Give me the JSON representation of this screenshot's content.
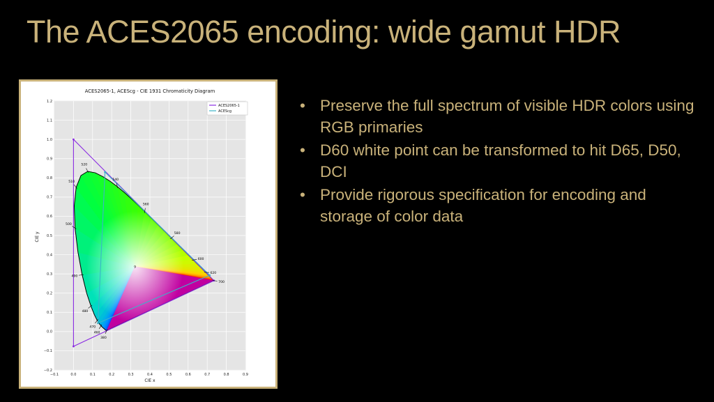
{
  "slide": {
    "title": "The ACES2065 encoding: wide gamut HDR",
    "bullet_glyph": "•",
    "bullets": [
      "Preserve the full spectrum of visible HDR colors using RGB primaries",
      "D60 white point can be transformed to hit D65, D50, DCI",
      "Provide rigorous specification for encoding and storage of color data"
    ],
    "colors": {
      "background": "#000000",
      "accent": "#c9b27a"
    }
  },
  "chart_data": {
    "type": "scatter",
    "title": "ACES2065-1, ACEScg - CIE 1931 Chromaticity Diagram",
    "xlabel": "CIE x",
    "ylabel": "CIE y",
    "xlim": [
      -0.1,
      0.9
    ],
    "ylim": [
      -0.2,
      1.2
    ],
    "x_ticks": [
      "−0.1",
      "0.0",
      "0.1",
      "0.2",
      "0.3",
      "0.4",
      "0.5",
      "0.6",
      "0.7",
      "0.8",
      "0.9"
    ],
    "y_ticks": [
      "−0.2",
      "−0.1",
      "0.0",
      "0.1",
      "0.2",
      "0.3",
      "0.4",
      "0.5",
      "0.6",
      "0.7",
      "0.8",
      "0.9",
      "1.0",
      "1.1",
      "1.2"
    ],
    "grid": true,
    "legend_position": "top-right",
    "series": [
      {
        "name": "ACES2065-1",
        "color": "#8a2be2",
        "points": [
          [
            0.7347,
            0.2653
          ],
          [
            0.0,
            1.0
          ],
          [
            0.0001,
            -0.077
          ],
          [
            0.7347,
            0.2653
          ]
        ]
      },
      {
        "name": "ACEScg",
        "color": "#3cb4c8",
        "points": [
          [
            0.713,
            0.293
          ],
          [
            0.165,
            0.83
          ],
          [
            0.128,
            0.044
          ],
          [
            0.713,
            0.293
          ]
        ]
      }
    ],
    "spectral_locus": [
      [
        0.1741,
        0.005
      ],
      [
        0.1738,
        0.0049
      ],
      [
        0.1736,
        0.0049
      ],
      [
        0.1733,
        0.0048
      ],
      [
        0.173,
        0.0048
      ],
      [
        0.1726,
        0.0048
      ],
      [
        0.1721,
        0.0048
      ],
      [
        0.1714,
        0.0051
      ],
      [
        0.1703,
        0.0058
      ],
      [
        0.1689,
        0.0069
      ],
      [
        0.1669,
        0.0086
      ],
      [
        0.1644,
        0.0109
      ],
      [
        0.1611,
        0.0138
      ],
      [
        0.1566,
        0.0177
      ],
      [
        0.151,
        0.0227
      ],
      [
        0.144,
        0.0297
      ],
      [
        0.1355,
        0.0399
      ],
      [
        0.1241,
        0.0578
      ],
      [
        0.1096,
        0.0868
      ],
      [
        0.0913,
        0.1327
      ],
      [
        0.0687,
        0.2007
      ],
      [
        0.0454,
        0.295
      ],
      [
        0.0235,
        0.4127
      ],
      [
        0.0082,
        0.5384
      ],
      [
        0.0039,
        0.6548
      ],
      [
        0.0139,
        0.7502
      ],
      [
        0.0389,
        0.812
      ],
      [
        0.0743,
        0.8338
      ],
      [
        0.1142,
        0.8262
      ],
      [
        0.1547,
        0.8059
      ],
      [
        0.1929,
        0.7816
      ],
      [
        0.2296,
        0.7543
      ],
      [
        0.2658,
        0.7243
      ],
      [
        0.3016,
        0.6923
      ],
      [
        0.3373,
        0.6589
      ],
      [
        0.3731,
        0.6245
      ],
      [
        0.4087,
        0.5896
      ],
      [
        0.4441,
        0.5547
      ],
      [
        0.4788,
        0.5202
      ],
      [
        0.5125,
        0.4866
      ],
      [
        0.5448,
        0.4544
      ],
      [
        0.5752,
        0.4242
      ],
      [
        0.6029,
        0.3965
      ],
      [
        0.627,
        0.3725
      ],
      [
        0.6482,
        0.3514
      ],
      [
        0.6658,
        0.334
      ],
      [
        0.6801,
        0.3197
      ],
      [
        0.6915,
        0.3083
      ],
      [
        0.7006,
        0.2993
      ],
      [
        0.7079,
        0.292
      ],
      [
        0.714,
        0.2859
      ],
      [
        0.719,
        0.2809
      ],
      [
        0.723,
        0.277
      ],
      [
        0.726,
        0.274
      ],
      [
        0.7283,
        0.2717
      ],
      [
        0.73,
        0.27
      ],
      [
        0.7311,
        0.2689
      ],
      [
        0.732,
        0.268
      ],
      [
        0.7327,
        0.2673
      ],
      [
        0.7334,
        0.2666
      ],
      [
        0.734,
        0.266
      ],
      [
        0.7344,
        0.2656
      ],
      [
        0.7346,
        0.2654
      ],
      [
        0.7347,
        0.2653
      ]
    ],
    "wavelength_labels": [
      {
        "text": "380",
        "x": 0.1741,
        "y": 0.005
      },
      {
        "text": "460",
        "x": 0.144,
        "y": 0.0297
      },
      {
        "text": "470",
        "x": 0.1241,
        "y": 0.0578
      },
      {
        "text": "480",
        "x": 0.0913,
        "y": 0.1327
      },
      {
        "text": "490",
        "x": 0.0454,
        "y": 0.295
      },
      {
        "text": "500",
        "x": 0.0082,
        "y": 0.5384
      },
      {
        "text": "510",
        "x": 0.0139,
        "y": 0.7502
      },
      {
        "text": "520",
        "x": 0.0743,
        "y": 0.8338
      },
      {
        "text": "540",
        "x": 0.2296,
        "y": 0.7543
      },
      {
        "text": "560",
        "x": 0.3731,
        "y": 0.6245
      },
      {
        "text": "580",
        "x": 0.5125,
        "y": 0.4866
      },
      {
        "text": "600",
        "x": 0.627,
        "y": 0.3725
      },
      {
        "text": "620",
        "x": 0.6915,
        "y": 0.3083
      },
      {
        "text": "700",
        "x": 0.7347,
        "y": 0.2653
      }
    ],
    "white_point_label": {
      "text": "9",
      "x": 0.32168,
      "y": 0.33767
    }
  }
}
